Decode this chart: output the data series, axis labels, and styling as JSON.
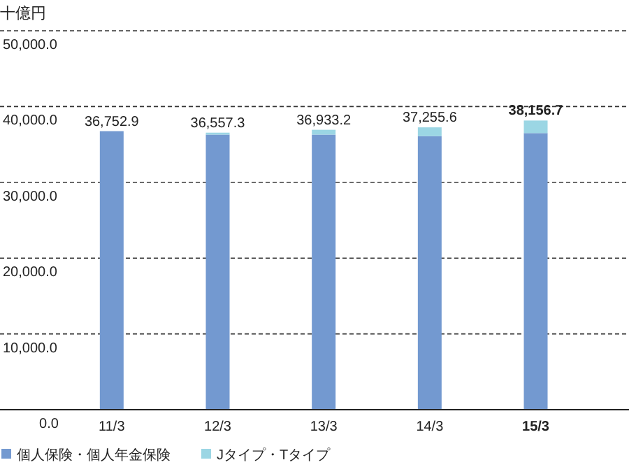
{
  "chart_data": {
    "type": "bar",
    "stacked": true,
    "ylabel": "十億円",
    "categories": [
      "11/3",
      "12/3",
      "13/3",
      "14/3",
      "15/3"
    ],
    "series": [
      {
        "name": "個人保険・個人年金保険",
        "color": "#7399d0",
        "values": [
          36752.9,
          36300,
          36300,
          36100,
          36500
        ]
      },
      {
        "name": "Jタイプ・Tタイプ",
        "color": "#9bd6e4",
        "values": [
          0,
          257.3,
          633.2,
          1155.6,
          1656.7
        ]
      }
    ],
    "totals": [
      "36,752.9",
      "36,557.3",
      "36,933.2",
      "37,255.6",
      "38,156.7"
    ],
    "ylim": [
      0,
      50000
    ],
    "yticks": [
      {
        "value": 0,
        "label": "0.0"
      },
      {
        "value": 10000,
        "label": "10,000.0"
      },
      {
        "value": 20000,
        "label": "20,000.0"
      },
      {
        "value": 30000,
        "label": "30,000.0"
      },
      {
        "value": 40000,
        "label": "40,000.0"
      },
      {
        "value": 50000,
        "label": "50,000.0"
      }
    ],
    "grid": "y",
    "legend": "bottom"
  }
}
